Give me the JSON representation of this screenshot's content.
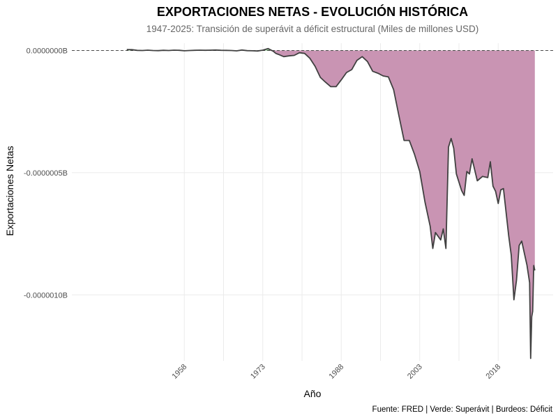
{
  "chart_data": {
    "type": "area",
    "title": "EXPORTACIONES NETAS - EVOLUCIÓN HISTÓRICA",
    "subtitle": "1947-2025: Transición de superávit a déficit estructural (Miles de millones USD)",
    "xlabel": "Año",
    "ylabel": "Exportaciones Netas",
    "caption": "Fuente: FRED | Verde: Superávit | Burdeos: Déficit",
    "xlim": [
      1936.5,
      2028.5
    ],
    "ylim": [
      -1.27e-06,
      3e-08
    ],
    "x_ticks": [
      1958,
      1973,
      1988,
      2003,
      2018
    ],
    "x_tick_labels": [
      "1958",
      "1973",
      "1988",
      "2003",
      "2018"
    ],
    "y_ticks": [
      0,
      -5e-07,
      -1e-06
    ],
    "y_tick_labels": [
      "0.0000000B",
      "-0.0000005B",
      "-0.0000010B"
    ],
    "grid": true,
    "reference_line": 0,
    "colors": {
      "surplus_fill": "#4caf50",
      "deficit_fill": "#c994b3",
      "line": "#404040",
      "reference_line": "#333333"
    },
    "series": [
      {
        "x": [
          1947,
          1948,
          1949,
          1950,
          1951,
          1952,
          1953,
          1954,
          1955,
          1956,
          1957,
          1958,
          1959,
          1960,
          1961,
          1962,
          1963,
          1964,
          1965,
          1966,
          1967,
          1968,
          1969,
          1970,
          1971,
          1972,
          1973,
          1974,
          1975,
          1975.5,
          1976,
          1977,
          1978,
          1979,
          1980,
          1981,
          1982,
          1983,
          1984,
          1985,
          1986,
          1987,
          1988,
          1989,
          1990,
          1991,
          1992,
          1993,
          1994,
          1995,
          1996,
          1997,
          1998,
          1999,
          2000,
          2001,
          2002,
          2003,
          2004,
          2005,
          2005.5,
          2006,
          2007,
          2007.5,
          2008,
          2008.5,
          2009,
          2009.5,
          2010,
          2011,
          2011.5,
          2012,
          2012.5,
          2013,
          2014,
          2015,
          2016,
          2016.5,
          2017,
          2017.5,
          2018,
          2018.5,
          2019,
          2020,
          2020.5,
          2021,
          2021.5,
          2022,
          2022.5,
          2023,
          2023.5,
          2024,
          2024.2,
          2024.4,
          2024.6,
          2024.8,
          2025
        ],
        "values": [
          4e-09,
          3.5e-09,
          5e-10,
          0,
          1.5e-09,
          0,
          -5e-10,
          1e-09,
          0,
          1.5e-09,
          1e-09,
          -1e-09,
          0,
          1e-09,
          1.5e-09,
          1e-09,
          1.5e-09,
          2e-09,
          1e-09,
          5e-10,
          0,
          -1.5e-09,
          2e-09,
          -5e-10,
          -1e-09,
          -2e-09,
          1.5e-09,
          8e-09,
          -3e-09,
          -1.2e-08,
          -1.6e-08,
          -2.5e-08,
          -2.2e-08,
          -2e-08,
          -9e-09,
          -1.2e-08,
          -3.2e-08,
          -6.5e-08,
          -1.1e-07,
          -1.3e-07,
          -1.48e-07,
          -1.48e-07,
          -1.2e-07,
          -9e-08,
          -7.8e-08,
          -4e-08,
          -2.5e-08,
          -4.5e-08,
          -8.5e-08,
          -9.3e-08,
          -1.04e-07,
          -1.08e-07,
          -1.6e-07,
          -2.65e-07,
          -3.68e-07,
          -3.68e-07,
          -4.25e-07,
          -4.95e-07,
          -6.2e-07,
          -7.2e-07,
          -8.1e-07,
          -7.45e-07,
          -7.75e-07,
          -7.3e-07,
          -8.1e-07,
          -3.95e-07,
          -3.6e-07,
          -4e-07,
          -5.05e-07,
          -5.73e-07,
          -5.93e-07,
          -4.95e-07,
          -5.05e-07,
          -4.43e-07,
          -5.33e-07,
          -5.15e-07,
          -5.2e-07,
          -4.55e-07,
          -5.55e-07,
          -5.76e-07,
          -6.26e-07,
          -5.7e-07,
          -5.65e-07,
          -7.58e-07,
          -8.38e-07,
          -1.02e-06,
          -9.4e-07,
          -7.98e-07,
          -7.8e-07,
          -8.3e-07,
          -8.78e-07,
          -9.5e-07,
          -1.26e-06,
          -1.09e-06,
          -1.067e-06,
          -8.8e-07,
          -9e-07
        ]
      }
    ]
  }
}
